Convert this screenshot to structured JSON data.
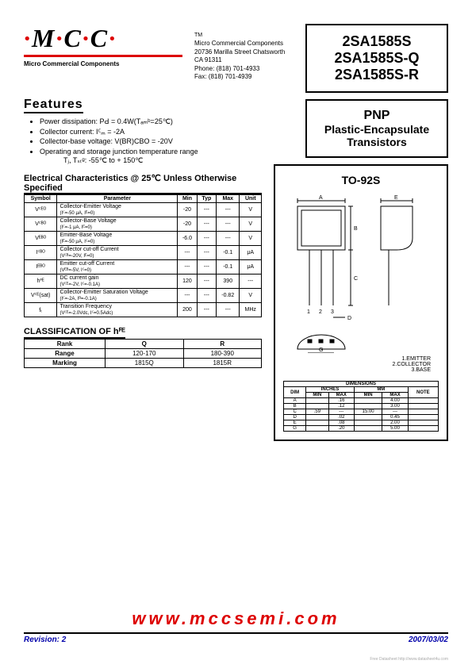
{
  "logo": {
    "text": "M·C·C",
    "underline_color": "#d00000",
    "subtitle": "Micro Commercial Components"
  },
  "company": {
    "name": "Micro Commercial Components",
    "address": "20736 Marilla Street Chatsworth",
    "citystate": "CA 91311",
    "phone": "Phone: (818) 701-4933",
    "fax": "Fax:     (818) 701-4939"
  },
  "parts": [
    "2SA1585S",
    "2SA1585S-Q",
    "2SA1585S-R"
  ],
  "subtitle": {
    "l1": "PNP",
    "l2": "Plastic-Encapsulate",
    "l3": "Transistors"
  },
  "features": {
    "header": "Features",
    "items": [
      "Power dissipation: PԀ = 0.4W(Tₐₘᵇ=25℃)",
      "Collector current: Iꟲₘ = -2A",
      "Collector-base voltage: V(BR)CBO = -20V",
      "Operating and storage junction temperature range",
      "        Tⱼ, Tₛₜᵍ: -55℃ to + 150℃"
    ]
  },
  "ec": {
    "header": "Electrical Characteristics @ 25℃ Unless Otherwise Specified",
    "columns": [
      "Symbol",
      "Parameter",
      "Min",
      "Typ",
      "Max",
      "Unit"
    ],
    "rows": [
      {
        "sym": "Vꟲᴱᴼ",
        "param": "Collector-Emitter Voltage",
        "cond": "(Iꟲ=-50 μA, Iᴱ=0)",
        "min": "-20",
        "typ": "---",
        "max": "---",
        "unit": "V"
      },
      {
        "sym": "Vꟲᴮᴼ",
        "param": "Collector-Base Voltage",
        "cond": "(Iꟲ=-1 μA, Iᴱ=0)",
        "min": "-20",
        "typ": "---",
        "max": "---",
        "unit": "V"
      },
      {
        "sym": "Vᴱᴮᴼ",
        "param": "Emitter-Base Voltage",
        "cond": "(Iᴱ=-50 μA, Iꟲ=0)",
        "min": "-6.0",
        "typ": "---",
        "max": "---",
        "unit": "V"
      },
      {
        "sym": "Iꟲᴮᴼ",
        "param": "Collector cut-off Current",
        "cond": "(Vꟲᴮ=-20V, Iᴱ=0)",
        "min": "---",
        "typ": "---",
        "max": "-0.1",
        "unit": "μA"
      },
      {
        "sym": "Iᴱᴮᴼ",
        "param": "Emitter cut-off Current",
        "cond": "(Vᴱᴮ=-5V, Iꟲ=0)",
        "min": "---",
        "typ": "---",
        "max": "-0.1",
        "unit": "μA"
      },
      {
        "sym": "hꟳᴱ",
        "param": "DC current gain",
        "cond": "(Vꟲᴱ=-2V, Iꟲ=-0.1A)",
        "min": "120",
        "typ": "---",
        "max": "390",
        "unit": "---"
      },
      {
        "sym": "Vꟲᴱ(sat)",
        "param": "Collector-Emitter Saturation Voltage",
        "cond": "(Iꟲ=-2A, Iᴮ=-0.1A)",
        "min": "---",
        "typ": "---",
        "max": "-0.82",
        "unit": "V"
      },
      {
        "sym": "fₜ",
        "param": "Transition Frequency",
        "cond": "(Vꟲᴱ=-2.0Vdc, Iꟲ=0.5Adc)",
        "min": "200",
        "typ": "---",
        "max": "---",
        "unit": "MHz"
      }
    ]
  },
  "classification": {
    "header": "CLASSIFICATION OF hꟳᴱ",
    "columns": [
      "Rank",
      "Q",
      "R"
    ],
    "rows": [
      [
        "Range",
        "120-170",
        "180-390"
      ],
      [
        "Marking",
        "1815Q",
        "1815R"
      ]
    ]
  },
  "package": {
    "title": "TO-92S",
    "pins": [
      "1.EMITTER",
      "2.COLLECTOR",
      "3.BASE"
    ],
    "dim_header": "DIMENSIONS",
    "dim_cols_top": [
      "DIM",
      "INCHES",
      "MM",
      "NOTE"
    ],
    "dim_cols_sub": [
      "MIN",
      "MAX",
      "MIN",
      "MAX"
    ],
    "dim_rows": [
      [
        "A",
        "",
        ".16",
        "",
        "4.00",
        ""
      ],
      [
        "B",
        "",
        ".12",
        "",
        "3.00",
        ""
      ],
      [
        "C",
        ".59",
        "---",
        "15.00",
        "---",
        ""
      ],
      [
        "D",
        "",
        ".02",
        "",
        "0.45",
        ""
      ],
      [
        "E",
        "",
        ".08",
        "",
        "2.00",
        ""
      ],
      [
        "G",
        "",
        ".20",
        "",
        "5.00",
        ""
      ]
    ]
  },
  "footer": {
    "url": "www.mccsemi.com",
    "revision": "Revision: 2",
    "date": "2007/03/02",
    "tiny": "Free Datasheet http://www.datasheet4u.com"
  },
  "colors": {
    "red": "#d00000",
    "blue": "#0000aa",
    "black": "#000000"
  }
}
